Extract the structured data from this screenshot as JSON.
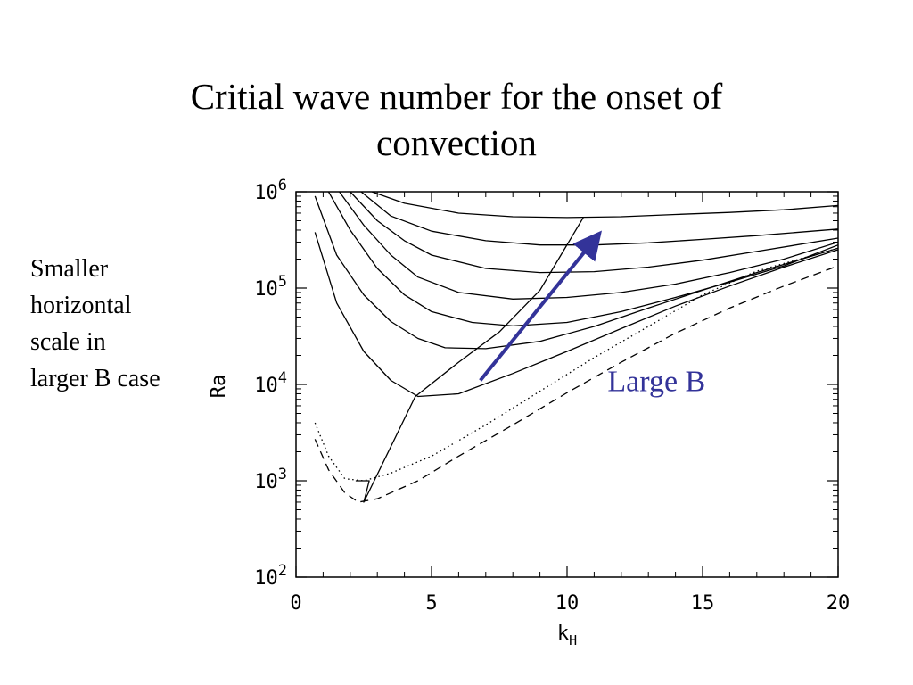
{
  "slide": {
    "title_lines": [
      "Critial wave number for the onset of",
      "convection"
    ],
    "side_note_lines": [
      "Smaller",
      "horizontal",
      "scale in",
      "larger B case"
    ]
  },
  "chart_data": {
    "type": "line",
    "xlabel": "k",
    "xlabel_sub": "H",
    "ylabel": "Ra",
    "xlim": [
      0,
      20
    ],
    "ylim": [
      100,
      1000000
    ],
    "yscale": "log",
    "xticks": [
      0,
      5,
      10,
      15,
      20
    ],
    "xtick_labels": [
      "0",
      "5",
      "10",
      "15",
      "20"
    ],
    "yticks": [
      100,
      1000,
      10000,
      100000,
      1000000
    ],
    "ytick_labels": [
      {
        "base": "10",
        "exp": "2"
      },
      {
        "base": "10",
        "exp": "3"
      },
      {
        "base": "10",
        "exp": "4"
      },
      {
        "base": "10",
        "exp": "5"
      },
      {
        "base": "10",
        "exp": "6"
      }
    ],
    "grid": false,
    "series": [
      {
        "style": "solid",
        "color": "#000000",
        "points": [
          [
            0.7,
            380000
          ],
          [
            1.5,
            70000
          ],
          [
            2.5,
            22000
          ],
          [
            3.5,
            11000
          ],
          [
            4.5,
            7500
          ],
          [
            6,
            8000
          ],
          [
            8,
            13000
          ],
          [
            10,
            22000
          ],
          [
            12,
            38000
          ],
          [
            14,
            65000
          ],
          [
            16,
            105000
          ],
          [
            18,
            165000
          ],
          [
            20,
            250000
          ]
        ]
      },
      {
        "style": "solid",
        "color": "#000000",
        "points": [
          [
            0.7,
            900000
          ],
          [
            1.5,
            220000
          ],
          [
            2.5,
            85000
          ],
          [
            3.5,
            45000
          ],
          [
            4.5,
            30000
          ],
          [
            5.5,
            24000
          ],
          [
            7,
            23500
          ],
          [
            9,
            28000
          ],
          [
            11,
            40000
          ],
          [
            13,
            62000
          ],
          [
            15,
            95000
          ],
          [
            17,
            145000
          ],
          [
            20,
            260000
          ]
        ]
      },
      {
        "style": "solid",
        "color": "#000000",
        "points": [
          [
            1.2,
            1000000
          ],
          [
            2,
            400000
          ],
          [
            3,
            160000
          ],
          [
            4,
            85000
          ],
          [
            5,
            57000
          ],
          [
            6.5,
            44000
          ],
          [
            8,
            40500
          ],
          [
            10,
            44000
          ],
          [
            12,
            57000
          ],
          [
            14,
            80000
          ],
          [
            16,
            115000
          ],
          [
            18,
            170000
          ],
          [
            20,
            280000
          ]
        ]
      },
      {
        "style": "solid",
        "color": "#000000",
        "points": [
          [
            1.6,
            1000000
          ],
          [
            2.5,
            450000
          ],
          [
            3.5,
            220000
          ],
          [
            4.5,
            130000
          ],
          [
            6,
            90000
          ],
          [
            8,
            77000
          ],
          [
            10,
            80000
          ],
          [
            12,
            90000
          ],
          [
            14,
            110000
          ],
          [
            16,
            145000
          ],
          [
            18,
            200000
          ],
          [
            20,
            300000
          ]
        ]
      },
      {
        "style": "solid",
        "color": "#000000",
        "points": [
          [
            2,
            1000000
          ],
          [
            3,
            500000
          ],
          [
            4,
            310000
          ],
          [
            5,
            220000
          ],
          [
            7,
            160000
          ],
          [
            9,
            145000
          ],
          [
            11,
            148000
          ],
          [
            13,
            165000
          ],
          [
            15,
            195000
          ],
          [
            17,
            240000
          ],
          [
            20,
            330000
          ]
        ]
      },
      {
        "style": "solid",
        "color": "#000000",
        "points": [
          [
            2.4,
            1000000
          ],
          [
            3.5,
            560000
          ],
          [
            5,
            390000
          ],
          [
            7,
            310000
          ],
          [
            9,
            280000
          ],
          [
            11,
            280000
          ],
          [
            13,
            295000
          ],
          [
            15,
            320000
          ],
          [
            17,
            350000
          ],
          [
            20,
            410000
          ]
        ]
      },
      {
        "style": "solid",
        "color": "#000000",
        "points": [
          [
            2.8,
            1000000
          ],
          [
            4,
            760000
          ],
          [
            6,
            600000
          ],
          [
            8,
            550000
          ],
          [
            10,
            540000
          ],
          [
            12,
            550000
          ],
          [
            14,
            580000
          ],
          [
            16,
            610000
          ],
          [
            18,
            650000
          ],
          [
            20,
            720000
          ]
        ]
      },
      {
        "style": "solid",
        "color": "#000000",
        "points": [
          [
            2.2,
            1000
          ],
          [
            2.7,
            1000
          ],
          [
            2.5,
            600
          ],
          [
            4.4,
            7500
          ],
          [
            6,
            17000
          ],
          [
            7.5,
            35000
          ],
          [
            9,
            95000
          ],
          [
            10.6,
            540000
          ]
        ]
      },
      {
        "style": "dotted",
        "color": "#000000",
        "points": [
          [
            0.7,
            4000
          ],
          [
            1.2,
            1800
          ],
          [
            1.8,
            1050
          ],
          [
            2.5,
            1000
          ],
          [
            3.5,
            1200
          ],
          [
            5,
            1800
          ],
          [
            7,
            3800
          ],
          [
            9,
            8500
          ],
          [
            11,
            19000
          ],
          [
            13,
            40000
          ],
          [
            15,
            85000
          ],
          [
            17,
            150000
          ],
          [
            20,
            260000
          ]
        ]
      },
      {
        "style": "dashed",
        "color": "#000000",
        "points": [
          [
            0.7,
            2700
          ],
          [
            1.2,
            1300
          ],
          [
            1.8,
            750
          ],
          [
            2.3,
            600
          ],
          [
            3,
            650
          ],
          [
            4.5,
            1000
          ],
          [
            6,
            1800
          ],
          [
            8,
            3800
          ],
          [
            10,
            8200
          ],
          [
            12,
            17000
          ],
          [
            14,
            34000
          ],
          [
            16,
            62000
          ],
          [
            18,
            105000
          ],
          [
            20,
            170000
          ]
        ]
      }
    ],
    "annotations": [
      {
        "type": "arrow",
        "color": "#333399",
        "from": [
          6.8,
          11000
        ],
        "to": [
          11.2,
          370000
        ]
      },
      {
        "type": "text",
        "text": "Large B",
        "color": "#333399",
        "at": [
          13.3,
          11000
        ]
      }
    ]
  }
}
